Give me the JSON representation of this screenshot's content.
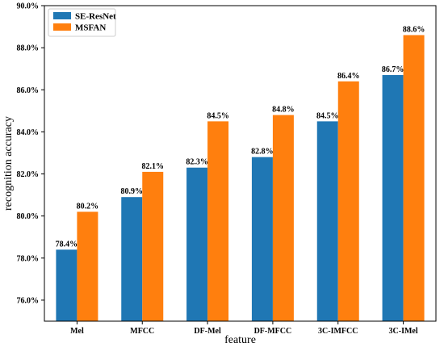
{
  "chart_data": {
    "type": "bar",
    "title": "",
    "xlabel": "feature",
    "ylabel": "recognition accuracy",
    "categories": [
      "Mel",
      "MFCC",
      "DF-Mel",
      "DF-MFCC",
      "3C-IMFCC",
      "3C-IMel"
    ],
    "series": [
      {
        "name": "SE-ResNet",
        "color": "#1f77b4",
        "values": [
          78.4,
          80.9,
          82.3,
          82.8,
          84.5,
          86.7
        ],
        "labels": [
          "78.4%",
          "80.9%",
          "82.3%",
          "82.8%",
          "84.5%",
          "86.7%"
        ]
      },
      {
        "name": "MSFAN",
        "color": "#ff7f0e",
        "values": [
          80.2,
          82.1,
          84.5,
          84.8,
          86.4,
          88.6
        ],
        "labels": [
          "80.2%",
          "82.1%",
          "84.5%",
          "84.8%",
          "86.4%",
          "88.6%"
        ]
      }
    ],
    "ylim": [
      75.0,
      90.0
    ],
    "yticks": [
      76.0,
      78.0,
      80.0,
      82.0,
      84.0,
      86.0,
      88.0,
      90.0
    ],
    "ytick_labels": [
      "76.0%",
      "78.0%",
      "80.0%",
      "82.0%",
      "84.0%",
      "86.0%",
      "88.0%",
      "90.0%"
    ],
    "grid": false,
    "legend_position": "top-left"
  }
}
